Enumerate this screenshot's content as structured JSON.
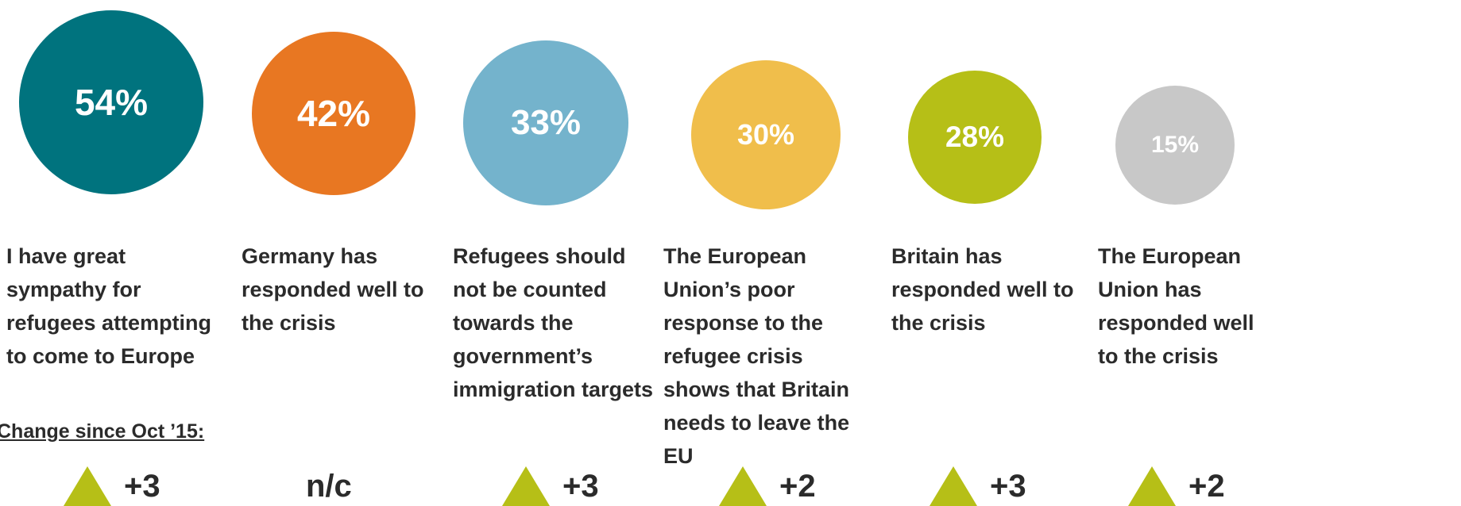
{
  "chart_data": {
    "type": "bubble",
    "values": [
      54,
      42,
      33,
      30,
      28,
      15
    ],
    "value_labels": [
      "54%",
      "42%",
      "33%",
      "30%",
      "28%",
      "15%"
    ],
    "categories": [
      "I have great sympathy for refugees attempting to come to Europe",
      "Germany has responded well to the crisis",
      "Refugees should not be counted towards the government’s immigration targets",
      "The European Union’s poor response to the refugee crisis shows that Britain needs to leave the EU",
      "Britain has responded well to the crisis",
      "The European Union has responded well to the crisis"
    ],
    "colors": [
      "#00737e",
      "#e87722",
      "#74b3cc",
      "#f0be4b",
      "#b6bf17",
      "#c8c8c8"
    ],
    "change_title": "Change since Oct ’15:",
    "changes": [
      "+3",
      "n/c",
      "+3",
      "+2",
      "+3",
      "+2"
    ],
    "change_direction": [
      "up",
      "none",
      "up",
      "up",
      "up",
      "up"
    ],
    "change_marker_color": "#b6bf17"
  }
}
